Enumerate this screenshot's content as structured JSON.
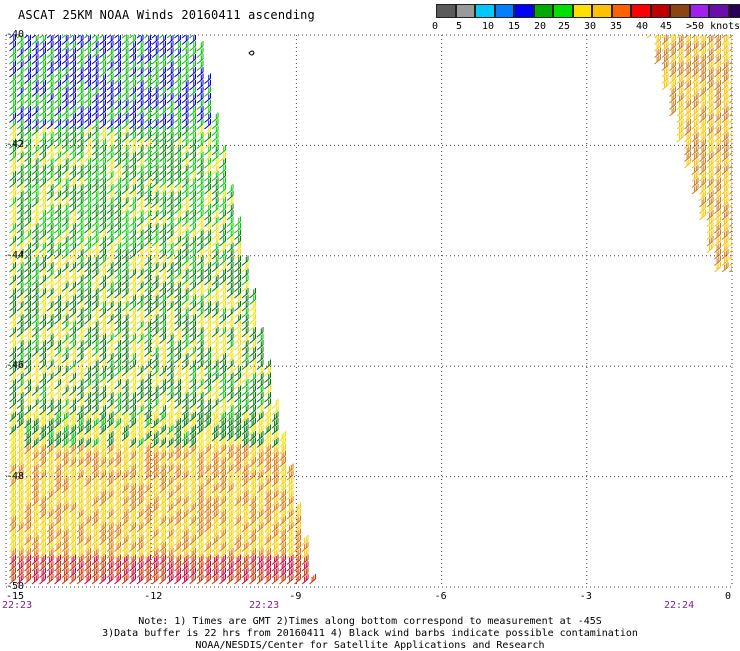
{
  "title": "ASCAT 25KM NOAA Winds 20160411 ascending",
  "legend": {
    "colors": [
      "#5a5a5a",
      "#9a9a9a",
      "#00c8ff",
      "#0080ff",
      "#0000ff",
      "#00aa00",
      "#00e000",
      "#ffe000",
      "#ffc000",
      "#ff6000",
      "#ff0000",
      "#c00000",
      "#8b4513",
      "#a020f0",
      "#6a0dad",
      "#2a0055"
    ],
    "labels": [
      "0",
      "5",
      "10",
      "15",
      "20",
      "25",
      "30",
      "35",
      "40",
      "45",
      ">50 knots"
    ]
  },
  "axes": {
    "x_ticks": [
      "-15",
      "-12",
      "-9",
      "-6",
      "-3",
      "0"
    ],
    "y_ticks": [
      "-40",
      "-42",
      "-44",
      "-46",
      "-48",
      "-50"
    ]
  },
  "times": [
    "22:23",
    "22:23",
    "22:24"
  ],
  "notes": [
    "Note: 1) Times are GMT 2)Times along bottom correspond to measurement at -45S",
    "3)Data buffer is 22 hrs from 20160411 4) Black wind barbs indicate possible contamination",
    "NOAA/NESDIS/Center for Satellite Applications and Research"
  ],
  "chart_data": {
    "type": "scatter",
    "title": "ASCAT 25KM NOAA Winds 20160411 ascending",
    "xlim": [
      -15,
      0
    ],
    "ylim": [
      -50,
      -40
    ],
    "xlabel": "",
    "ylabel": "",
    "grid": true,
    "legend_placement": "top-right",
    "swath_west": {
      "corners_lon_lat": [
        [
          -15,
          -40
        ],
        [
          -11.1,
          -40
        ],
        [
          -8.7,
          -50
        ],
        [
          -15,
          -50
        ]
      ],
      "speed_bands_knots_by_lat": [
        {
          "lat_range": [
            -40,
            -41.8
          ],
          "knots": "10-20",
          "color": "blue/green"
        },
        {
          "lat_range": [
            -41.8,
            -44
          ],
          "knots": "15-25",
          "color": "green/yellow"
        },
        {
          "lat_range": [
            -44,
            -47.5
          ],
          "knots": "15-25",
          "color": "green/yellow"
        },
        {
          "lat_range": [
            -47.5,
            -49.5
          ],
          "knots": "20-30",
          "color": "yellow/orange"
        },
        {
          "lat_range": [
            -49.5,
            -50
          ],
          "knots": "30-40",
          "color": "orange/red"
        }
      ]
    },
    "swath_east": {
      "corners_lon_lat": [
        [
          -1.8,
          -40
        ],
        [
          0,
          -40
        ],
        [
          0,
          -44.3
        ],
        [
          -0.4,
          -44.3
        ]
      ],
      "knots": "25-35",
      "color": "yellow/orange"
    }
  }
}
